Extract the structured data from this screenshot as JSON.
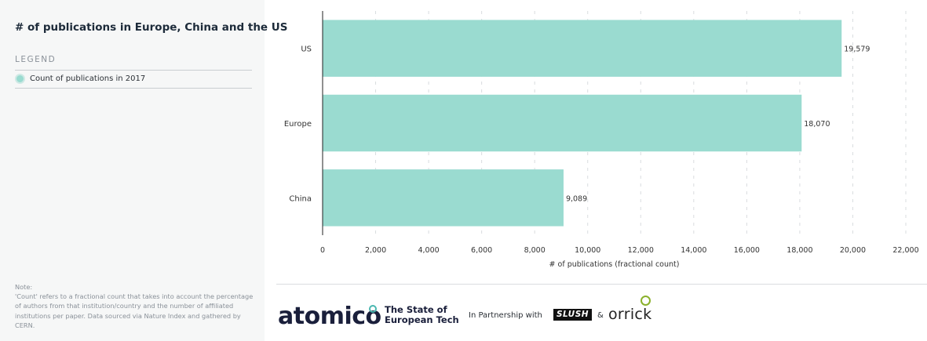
{
  "sidebar": {
    "title": "# of publications in Europe, China and the US",
    "legend_heading": "LEGEND",
    "legend_item": "Count of publications in 2017",
    "note": "Note:\n'Count' refers to a fractional count that takes into account the percentage of authors from that institution/country and the number of affiliated institutions per paper. Data sourced via Nature Index and gathered by CERN."
  },
  "chart_data": {
    "type": "bar",
    "orientation": "horizontal",
    "categories": [
      "US",
      "Europe",
      "China"
    ],
    "series": [
      {
        "name": "Count of publications in 2017",
        "values": [
          19579,
          18070,
          9089
        ]
      }
    ],
    "value_labels": [
      "19,579",
      "18,070",
      "9,089"
    ],
    "xlabel": "# of publications (fractional count)",
    "ylabel": "",
    "xlim": [
      0,
      22000
    ],
    "xticks": [
      0,
      2000,
      4000,
      6000,
      8000,
      10000,
      12000,
      14000,
      16000,
      18000,
      20000,
      22000
    ],
    "xtick_labels": [
      "0",
      "2,000",
      "4,000",
      "6,000",
      "8,000",
      "10,000",
      "12,000",
      "14,000",
      "16,000",
      "18,000",
      "20,000",
      "22,000"
    ],
    "grid": true,
    "bar_color": "#9adbd0"
  },
  "footer": {
    "brand": "atomico",
    "report_line1": "The State of",
    "report_line2": "European Tech",
    "partnership": "In Partnership with",
    "partner1": "SLUSH",
    "ampersand": "&",
    "partner2": "orrick"
  }
}
